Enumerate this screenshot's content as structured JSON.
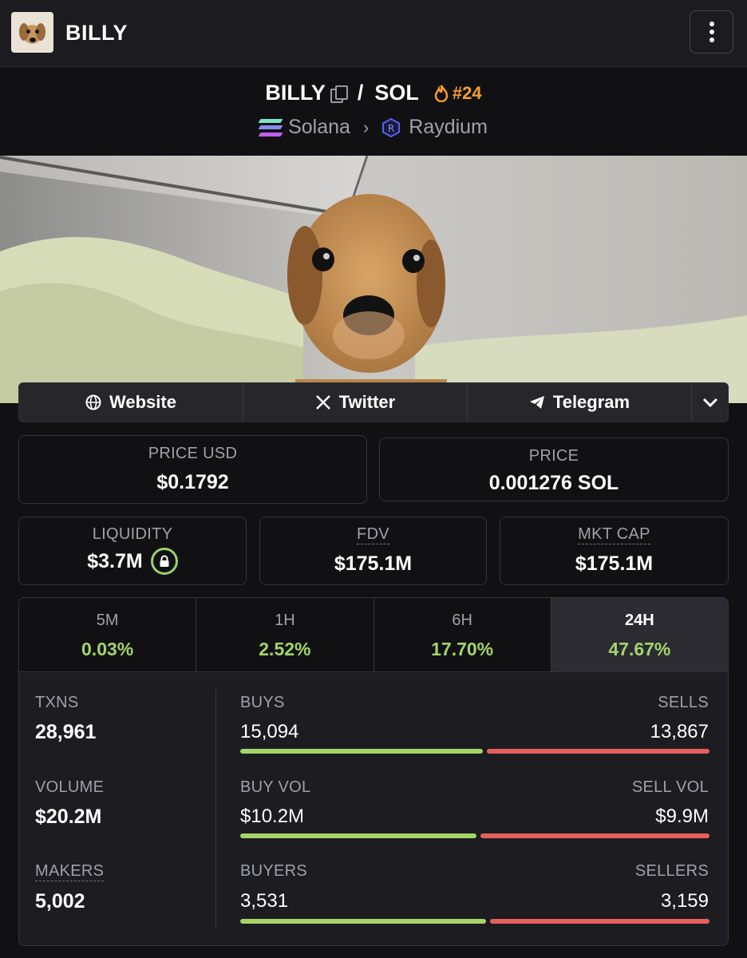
{
  "header": {
    "title": "BILLY"
  },
  "pair": {
    "base": "BILLY",
    "separator": "/",
    "quote": "SOL",
    "rank": "#24",
    "chain": "Solana",
    "dex": "Raydium"
  },
  "links": {
    "website": "Website",
    "twitter": "Twitter",
    "telegram": "Telegram"
  },
  "prices": {
    "price_usd_label": "PRICE USD",
    "price_usd": "$0.1792",
    "price_label": "PRICE",
    "price_sol": "0.001276 SOL",
    "liquidity_label": "LIQUIDITY",
    "liquidity": "$3.7M",
    "fdv_label": "FDV",
    "fdv": "$175.1M",
    "mktcap_label": "MKT CAP",
    "mktcap": "$175.1M"
  },
  "timeframes": [
    {
      "label": "5M",
      "change": "0.03%"
    },
    {
      "label": "1H",
      "change": "2.52%"
    },
    {
      "label": "6H",
      "change": "17.70%"
    },
    {
      "label": "24H",
      "change": "47.67%",
      "active": true
    }
  ],
  "stats": {
    "txns_label": "TXNS",
    "txns": "28,961",
    "volume_label": "VOLUME",
    "volume": "$20.2M",
    "makers_label": "MAKERS",
    "makers": "5,002",
    "buys_label": "BUYS",
    "buys": "15,094",
    "sells_label": "SELLS",
    "sells": "13,867",
    "buy_vol_label": "BUY VOL",
    "buy_vol": "$10.2M",
    "sell_vol_label": "SELL VOL",
    "sell_vol": "$9.9M",
    "buyers_label": "BUYERS",
    "buyers": "3,531",
    "sellers_label": "SELLERS",
    "sellers": "3,159",
    "ratios": {
      "buys": 0.521,
      "buy_vol": 0.507,
      "buyers": 0.528
    }
  },
  "colors": {
    "positive": "#a3d46a",
    "negative": "#e5605c",
    "rank": "#f59e2c"
  }
}
